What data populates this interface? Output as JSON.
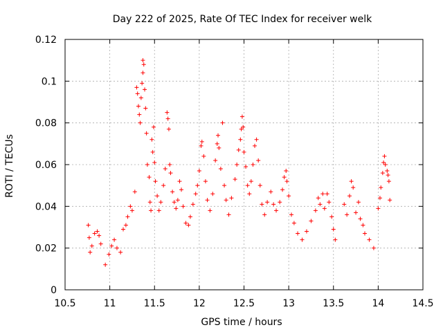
{
  "chart_data": {
    "type": "scatter",
    "title": "Day 222 of 2025, Rate Of TEC Index for receiver welk",
    "xlabel": "GPS time / hours",
    "ylabel": "ROTI / TECUs",
    "xlim": [
      10.5,
      14.5
    ],
    "ylim": [
      0,
      0.12
    ],
    "xticks": [
      10.5,
      11,
      11.5,
      12,
      12.5,
      13,
      13.5,
      14,
      14.5
    ],
    "xtick_labels": [
      "10.5",
      "11",
      "11.5",
      "12",
      "12.5",
      "13",
      "13.5",
      "14",
      "14.5"
    ],
    "yticks": [
      0,
      0.02,
      0.04,
      0.06,
      0.08,
      0.1,
      0.12
    ],
    "ytick_labels": [
      "0",
      "0.02",
      "0.04",
      "0.06",
      "0.08",
      "0.1",
      "0.12"
    ],
    "grid": true,
    "marker": "+",
    "color": "#ff0000",
    "series": [
      {
        "name": "ROTI",
        "points": [
          [
            10.76,
            0.031
          ],
          [
            10.77,
            0.025
          ],
          [
            10.78,
            0.018
          ],
          [
            10.8,
            0.021
          ],
          [
            10.83,
            0.027
          ],
          [
            10.86,
            0.028
          ],
          [
            10.88,
            0.026
          ],
          [
            10.9,
            0.022
          ],
          [
            10.95,
            0.012
          ],
          [
            10.99,
            0.017
          ],
          [
            11.02,
            0.021
          ],
          [
            11.05,
            0.024
          ],
          [
            11.08,
            0.02
          ],
          [
            11.12,
            0.018
          ],
          [
            11.15,
            0.029
          ],
          [
            11.18,
            0.031
          ],
          [
            11.2,
            0.035
          ],
          [
            11.23,
            0.04
          ],
          [
            11.25,
            0.038
          ],
          [
            11.28,
            0.047
          ],
          [
            11.3,
            0.097
          ],
          [
            11.31,
            0.094
          ],
          [
            11.32,
            0.088
          ],
          [
            11.33,
            0.084
          ],
          [
            11.34,
            0.08
          ],
          [
            11.35,
            0.092
          ],
          [
            11.36,
            0.099
          ],
          [
            11.37,
            0.104
          ],
          [
            11.37,
            0.11
          ],
          [
            11.38,
            0.108
          ],
          [
            11.39,
            0.096
          ],
          [
            11.4,
            0.087
          ],
          [
            11.41,
            0.075
          ],
          [
            11.42,
            0.06
          ],
          [
            11.44,
            0.054
          ],
          [
            11.45,
            0.042
          ],
          [
            11.46,
            0.038
          ],
          [
            11.47,
            0.072
          ],
          [
            11.48,
            0.066
          ],
          [
            11.49,
            0.078
          ],
          [
            11.5,
            0.061
          ],
          [
            11.51,
            0.052
          ],
          [
            11.53,
            0.045
          ],
          [
            11.55,
            0.038
          ],
          [
            11.57,
            0.042
          ],
          [
            11.6,
            0.05
          ],
          [
            11.62,
            0.058
          ],
          [
            11.64,
            0.085
          ],
          [
            11.65,
            0.082
          ],
          [
            11.66,
            0.077
          ],
          [
            11.67,
            0.06
          ],
          [
            11.68,
            0.056
          ],
          [
            11.7,
            0.047
          ],
          [
            11.72,
            0.042
          ],
          [
            11.74,
            0.039
          ],
          [
            11.76,
            0.043
          ],
          [
            11.78,
            0.052
          ],
          [
            11.8,
            0.048
          ],
          [
            11.82,
            0.04
          ],
          [
            11.85,
            0.032
          ],
          [
            11.88,
            0.031
          ],
          [
            11.9,
            0.035
          ],
          [
            11.93,
            0.041
          ],
          [
            11.96,
            0.046
          ],
          [
            11.98,
            0.05
          ],
          [
            12.0,
            0.057
          ],
          [
            12.02,
            0.069
          ],
          [
            12.03,
            0.071
          ],
          [
            12.05,
            0.064
          ],
          [
            12.07,
            0.052
          ],
          [
            12.09,
            0.043
          ],
          [
            12.12,
            0.038
          ],
          [
            12.15,
            0.046
          ],
          [
            12.18,
            0.062
          ],
          [
            12.2,
            0.07
          ],
          [
            12.21,
            0.074
          ],
          [
            12.22,
            0.068
          ],
          [
            12.24,
            0.058
          ],
          [
            12.26,
            0.08
          ],
          [
            12.28,
            0.05
          ],
          [
            12.3,
            0.043
          ],
          [
            12.33,
            0.036
          ],
          [
            12.36,
            0.044
          ],
          [
            12.4,
            0.053
          ],
          [
            12.42,
            0.06
          ],
          [
            12.44,
            0.067
          ],
          [
            12.46,
            0.072
          ],
          [
            12.47,
            0.077
          ],
          [
            12.48,
            0.083
          ],
          [
            12.49,
            0.078
          ],
          [
            12.5,
            0.066
          ],
          [
            12.52,
            0.059
          ],
          [
            12.54,
            0.05
          ],
          [
            12.56,
            0.046
          ],
          [
            12.58,
            0.052
          ],
          [
            12.6,
            0.06
          ],
          [
            12.62,
            0.069
          ],
          [
            12.64,
            0.072
          ],
          [
            12.66,
            0.062
          ],
          [
            12.68,
            0.05
          ],
          [
            12.7,
            0.041
          ],
          [
            12.73,
            0.036
          ],
          [
            12.76,
            0.042
          ],
          [
            12.8,
            0.047
          ],
          [
            12.83,
            0.041
          ],
          [
            12.86,
            0.038
          ],
          [
            12.9,
            0.042
          ],
          [
            12.93,
            0.048
          ],
          [
            12.95,
            0.054
          ],
          [
            12.97,
            0.057
          ],
          [
            12.98,
            0.052
          ],
          [
            13.0,
            0.045
          ],
          [
            13.03,
            0.036
          ],
          [
            13.06,
            0.032
          ],
          [
            13.1,
            0.027
          ],
          [
            13.15,
            0.024
          ],
          [
            13.2,
            0.028
          ],
          [
            13.25,
            0.033
          ],
          [
            13.3,
            0.038
          ],
          [
            13.33,
            0.044
          ],
          [
            13.35,
            0.041
          ],
          [
            13.38,
            0.046
          ],
          [
            13.4,
            0.039
          ],
          [
            13.43,
            0.046
          ],
          [
            13.45,
            0.042
          ],
          [
            13.48,
            0.035
          ],
          [
            13.5,
            0.029
          ],
          [
            13.52,
            0.024
          ],
          [
            13.62,
            0.041
          ],
          [
            13.65,
            0.036
          ],
          [
            13.68,
            0.045
          ],
          [
            13.7,
            0.052
          ],
          [
            13.72,
            0.049
          ],
          [
            13.75,
            0.037
          ],
          [
            13.78,
            0.042
          ],
          [
            13.8,
            0.034
          ],
          [
            13.83,
            0.031
          ],
          [
            13.85,
            0.027
          ],
          [
            13.9,
            0.024
          ],
          [
            13.95,
            0.02
          ],
          [
            14.0,
            0.039
          ],
          [
            14.02,
            0.044
          ],
          [
            14.03,
            0.049
          ],
          [
            14.05,
            0.056
          ],
          [
            14.06,
            0.061
          ],
          [
            14.07,
            0.064
          ],
          [
            14.08,
            0.06
          ],
          [
            14.1,
            0.057
          ],
          [
            14.11,
            0.055
          ],
          [
            14.12,
            0.052
          ],
          [
            14.13,
            0.043
          ]
        ]
      }
    ]
  }
}
